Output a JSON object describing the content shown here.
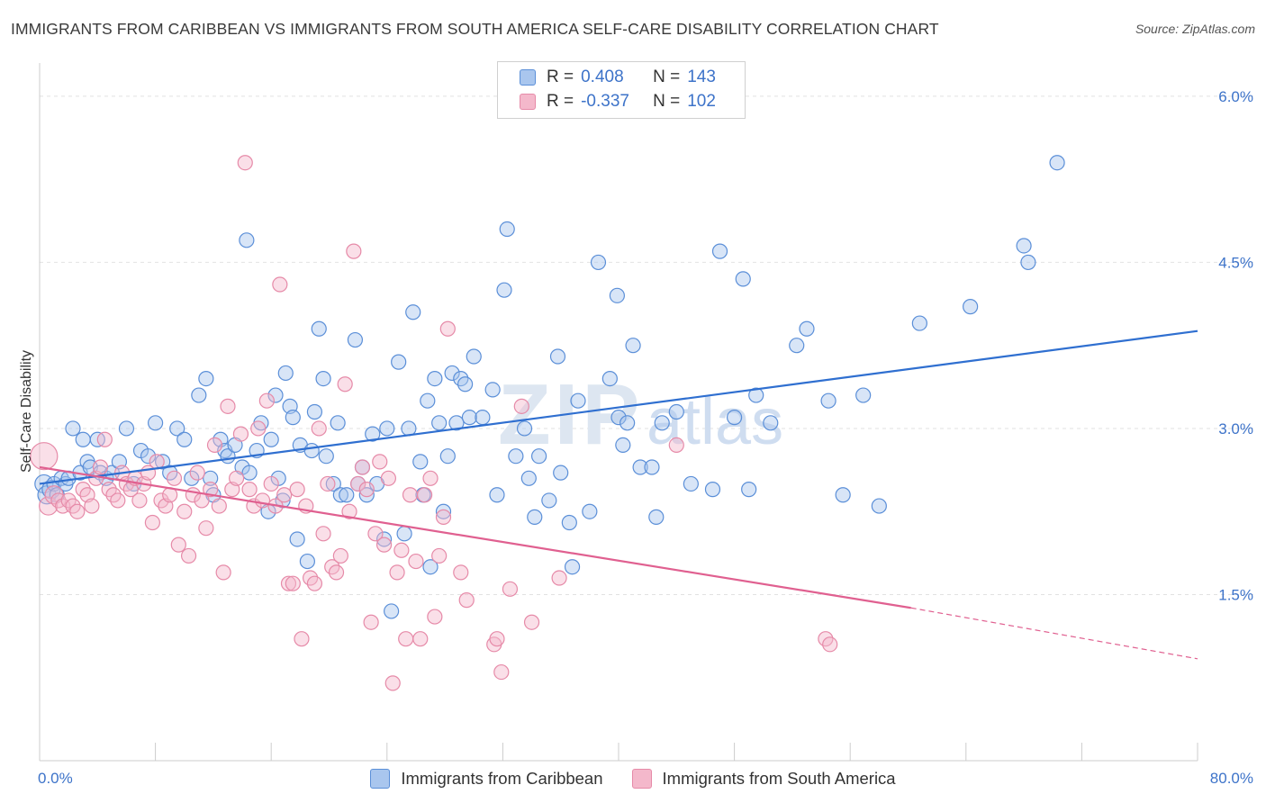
{
  "title": "IMMIGRANTS FROM CARIBBEAN VS IMMIGRANTS FROM SOUTH AMERICA SELF-CARE DISABILITY CORRELATION CHART",
  "source": "Source: ZipAtlas.com",
  "watermark": {
    "zip": "ZIP",
    "atlas": "atlas"
  },
  "legend": {
    "r_label": "R =",
    "n_label": "N =",
    "series": [
      {
        "r": "0.408",
        "n": "143"
      },
      {
        "r": "-0.337",
        "n": "102"
      }
    ]
  },
  "chart_data": {
    "type": "scatter",
    "title": "IMMIGRANTS FROM CARIBBEAN VS IMMIGRANTS FROM SOUTH AMERICA SELF-CARE DISABILITY CORRELATION CHART",
    "xlabel": "",
    "ylabel": "Self-Care Disability",
    "xlim": [
      0,
      80
    ],
    "ylim": [
      0,
      6.3
    ],
    "x_tick_labels": [
      "0.0%",
      "80.0%"
    ],
    "y_ticks": [
      1.5,
      3.0,
      4.5,
      6.0
    ],
    "y_tick_labels": [
      "1.5%",
      "3.0%",
      "4.5%",
      "6.0%"
    ],
    "grid": true,
    "legend_position": "top-center",
    "series": [
      {
        "name": "Immigrants from Caribbean",
        "color": "#5b8fd8",
        "fill": "#a9c6ee",
        "line_color": "#2f6fd0",
        "trend": {
          "x": [
            0,
            80
          ],
          "y": [
            2.5,
            3.88
          ]
        },
        "points": [
          [
            0.3,
            2.5
          ],
          [
            0.5,
            2.4
          ],
          [
            0.8,
            2.45
          ],
          [
            1.0,
            2.5
          ],
          [
            1.2,
            2.4
          ],
          [
            1.5,
            2.55
          ],
          [
            1.8,
            2.5
          ],
          [
            2.0,
            2.55
          ],
          [
            2.3,
            3.0
          ],
          [
            2.8,
            2.6
          ],
          [
            3.0,
            2.9
          ],
          [
            3.3,
            2.7
          ],
          [
            3.5,
            2.65
          ],
          [
            4.0,
            2.9
          ],
          [
            4.2,
            2.6
          ],
          [
            4.6,
            2.55
          ],
          [
            5.0,
            2.6
          ],
          [
            5.5,
            2.7
          ],
          [
            6.0,
            3.0
          ],
          [
            6.5,
            2.5
          ],
          [
            7.0,
            2.8
          ],
          [
            7.5,
            2.75
          ],
          [
            8.0,
            3.05
          ],
          [
            8.5,
            2.7
          ],
          [
            9.0,
            2.6
          ],
          [
            9.5,
            3.0
          ],
          [
            10.0,
            2.9
          ],
          [
            10.5,
            2.55
          ],
          [
            11.0,
            3.3
          ],
          [
            11.5,
            3.45
          ],
          [
            11.8,
            2.55
          ],
          [
            12.0,
            2.4
          ],
          [
            12.5,
            2.9
          ],
          [
            12.8,
            2.8
          ],
          [
            13.0,
            2.75
          ],
          [
            13.5,
            2.85
          ],
          [
            14.0,
            2.65
          ],
          [
            14.3,
            4.7
          ],
          [
            14.5,
            2.6
          ],
          [
            15.0,
            2.8
          ],
          [
            15.3,
            3.05
          ],
          [
            15.8,
            2.25
          ],
          [
            16.0,
            2.9
          ],
          [
            16.3,
            3.3
          ],
          [
            16.5,
            2.55
          ],
          [
            16.8,
            2.35
          ],
          [
            17.0,
            3.5
          ],
          [
            17.3,
            3.2
          ],
          [
            17.5,
            3.1
          ],
          [
            17.8,
            2.0
          ],
          [
            18.0,
            2.85
          ],
          [
            18.5,
            1.8
          ],
          [
            18.8,
            2.8
          ],
          [
            19.0,
            3.15
          ],
          [
            19.3,
            3.9
          ],
          [
            19.6,
            3.45
          ],
          [
            19.8,
            2.75
          ],
          [
            20.3,
            2.5
          ],
          [
            20.6,
            3.05
          ],
          [
            20.8,
            2.4
          ],
          [
            21.2,
            2.4
          ],
          [
            21.8,
            3.8
          ],
          [
            22.0,
            2.5
          ],
          [
            22.3,
            2.65
          ],
          [
            22.6,
            2.4
          ],
          [
            23.0,
            2.95
          ],
          [
            23.3,
            2.5
          ],
          [
            23.8,
            2.0
          ],
          [
            24.0,
            3.0
          ],
          [
            24.3,
            1.35
          ],
          [
            24.8,
            3.6
          ],
          [
            25.2,
            2.05
          ],
          [
            25.5,
            3.0
          ],
          [
            25.8,
            4.05
          ],
          [
            26.3,
            2.7
          ],
          [
            26.5,
            2.4
          ],
          [
            26.8,
            3.25
          ],
          [
            27.0,
            1.75
          ],
          [
            27.3,
            3.45
          ],
          [
            27.6,
            3.05
          ],
          [
            27.9,
            2.25
          ],
          [
            28.2,
            2.75
          ],
          [
            28.5,
            3.5
          ],
          [
            28.8,
            3.05
          ],
          [
            29.1,
            3.45
          ],
          [
            29.4,
            3.4
          ],
          [
            29.7,
            3.1
          ],
          [
            30.0,
            3.65
          ],
          [
            30.6,
            3.1
          ],
          [
            31.3,
            3.35
          ],
          [
            31.6,
            2.4
          ],
          [
            32.1,
            4.25
          ],
          [
            32.3,
            4.8
          ],
          [
            32.9,
            2.75
          ],
          [
            33.5,
            3.0
          ],
          [
            33.8,
            2.55
          ],
          [
            34.2,
            2.2
          ],
          [
            34.5,
            2.75
          ],
          [
            35.2,
            2.35
          ],
          [
            35.8,
            3.65
          ],
          [
            36.0,
            2.6
          ],
          [
            36.6,
            2.15
          ],
          [
            36.8,
            1.75
          ],
          [
            37.2,
            3.25
          ],
          [
            38.0,
            2.25
          ],
          [
            38.6,
            4.5
          ],
          [
            39.4,
            3.45
          ],
          [
            39.9,
            4.2
          ],
          [
            40.0,
            3.1
          ],
          [
            40.3,
            2.85
          ],
          [
            40.6,
            3.05
          ],
          [
            41.0,
            3.75
          ],
          [
            41.5,
            2.65
          ],
          [
            42.6,
            2.2
          ],
          [
            42.3,
            2.65
          ],
          [
            43.0,
            3.05
          ],
          [
            44.0,
            3.15
          ],
          [
            45.0,
            2.5
          ],
          [
            46.5,
            2.45
          ],
          [
            47.0,
            4.6
          ],
          [
            48.0,
            3.1
          ],
          [
            48.6,
            4.35
          ],
          [
            49.0,
            2.45
          ],
          [
            49.5,
            3.3
          ],
          [
            50.5,
            3.05
          ],
          [
            52.3,
            3.75
          ],
          [
            53.0,
            3.9
          ],
          [
            54.5,
            3.25
          ],
          [
            55.5,
            2.4
          ],
          [
            56.9,
            3.3
          ],
          [
            58.0,
            2.3
          ],
          [
            60.8,
            3.95
          ],
          [
            64.3,
            4.1
          ],
          [
            68.0,
            4.65
          ],
          [
            68.3,
            4.5
          ],
          [
            70.3,
            5.4
          ]
        ]
      },
      {
        "name": "Immigrants from South America",
        "color": "#e68aa8",
        "fill": "#f4b8cb",
        "line_color": "#e06090",
        "trend": {
          "x": [
            0,
            60.2
          ],
          "y": [
            2.65,
            1.38
          ]
        },
        "trend_dashed": {
          "x": [
            60.2,
            80
          ],
          "y": [
            1.38,
            0.92
          ]
        },
        "points": [
          [
            0.3,
            2.75
          ],
          [
            0.6,
            2.3
          ],
          [
            1.0,
            2.4
          ],
          [
            1.3,
            2.35
          ],
          [
            1.6,
            2.3
          ],
          [
            2.0,
            2.35
          ],
          [
            2.3,
            2.3
          ],
          [
            2.6,
            2.25
          ],
          [
            3.0,
            2.45
          ],
          [
            3.3,
            2.4
          ],
          [
            3.6,
            2.3
          ],
          [
            3.9,
            2.55
          ],
          [
            4.2,
            2.65
          ],
          [
            4.5,
            2.9
          ],
          [
            4.8,
            2.45
          ],
          [
            5.1,
            2.4
          ],
          [
            5.4,
            2.35
          ],
          [
            5.7,
            2.6
          ],
          [
            6.0,
            2.5
          ],
          [
            6.3,
            2.45
          ],
          [
            6.6,
            2.55
          ],
          [
            6.9,
            2.35
          ],
          [
            7.2,
            2.5
          ],
          [
            7.5,
            2.6
          ],
          [
            7.8,
            2.15
          ],
          [
            8.1,
            2.7
          ],
          [
            8.4,
            2.35
          ],
          [
            8.7,
            2.3
          ],
          [
            9.0,
            2.4
          ],
          [
            9.3,
            2.55
          ],
          [
            9.6,
            1.95
          ],
          [
            10.0,
            2.25
          ],
          [
            10.3,
            1.85
          ],
          [
            10.6,
            2.4
          ],
          [
            10.9,
            2.6
          ],
          [
            11.2,
            2.35
          ],
          [
            11.5,
            2.1
          ],
          [
            11.8,
            2.45
          ],
          [
            12.1,
            2.85
          ],
          [
            12.4,
            2.3
          ],
          [
            12.7,
            1.7
          ],
          [
            13.0,
            3.2
          ],
          [
            13.3,
            2.45
          ],
          [
            13.6,
            2.55
          ],
          [
            13.9,
            2.95
          ],
          [
            14.2,
            5.4
          ],
          [
            14.5,
            2.45
          ],
          [
            14.8,
            2.3
          ],
          [
            15.1,
            3.0
          ],
          [
            15.4,
            2.35
          ],
          [
            15.7,
            3.25
          ],
          [
            16.0,
            2.5
          ],
          [
            16.3,
            2.3
          ],
          [
            16.6,
            4.3
          ],
          [
            16.9,
            2.4
          ],
          [
            17.2,
            1.6
          ],
          [
            17.5,
            1.6
          ],
          [
            17.8,
            2.45
          ],
          [
            18.1,
            1.1
          ],
          [
            18.4,
            2.3
          ],
          [
            18.7,
            1.65
          ],
          [
            19.0,
            1.6
          ],
          [
            19.3,
            3.0
          ],
          [
            19.6,
            2.05
          ],
          [
            19.9,
            2.5
          ],
          [
            20.2,
            1.75
          ],
          [
            20.5,
            1.7
          ],
          [
            20.8,
            1.85
          ],
          [
            21.1,
            3.4
          ],
          [
            21.4,
            2.25
          ],
          [
            21.7,
            4.6
          ],
          [
            22.0,
            2.5
          ],
          [
            22.3,
            2.65
          ],
          [
            22.6,
            2.45
          ],
          [
            22.9,
            1.25
          ],
          [
            23.2,
            2.05
          ],
          [
            23.5,
            2.7
          ],
          [
            23.8,
            1.95
          ],
          [
            24.1,
            2.55
          ],
          [
            24.4,
            0.7
          ],
          [
            24.7,
            1.7
          ],
          [
            25.0,
            1.9
          ],
          [
            25.3,
            1.1
          ],
          [
            25.6,
            2.4
          ],
          [
            26.0,
            1.8
          ],
          [
            26.3,
            1.1
          ],
          [
            26.6,
            2.4
          ],
          [
            27.0,
            2.55
          ],
          [
            27.3,
            1.3
          ],
          [
            27.6,
            1.85
          ],
          [
            27.9,
            2.2
          ],
          [
            28.2,
            3.9
          ],
          [
            29.1,
            1.7
          ],
          [
            29.5,
            1.45
          ],
          [
            31.4,
            1.05
          ],
          [
            31.6,
            1.1
          ],
          [
            31.9,
            0.8
          ],
          [
            32.5,
            1.55
          ],
          [
            33.3,
            3.2
          ],
          [
            34.0,
            1.25
          ],
          [
            35.9,
            1.65
          ],
          [
            44.0,
            2.85
          ],
          [
            54.3,
            1.1
          ],
          [
            54.6,
            1.05
          ]
        ]
      }
    ]
  },
  "bottom_legend": {
    "items": [
      "Immigrants from Caribbean",
      "Immigrants from South America"
    ]
  }
}
